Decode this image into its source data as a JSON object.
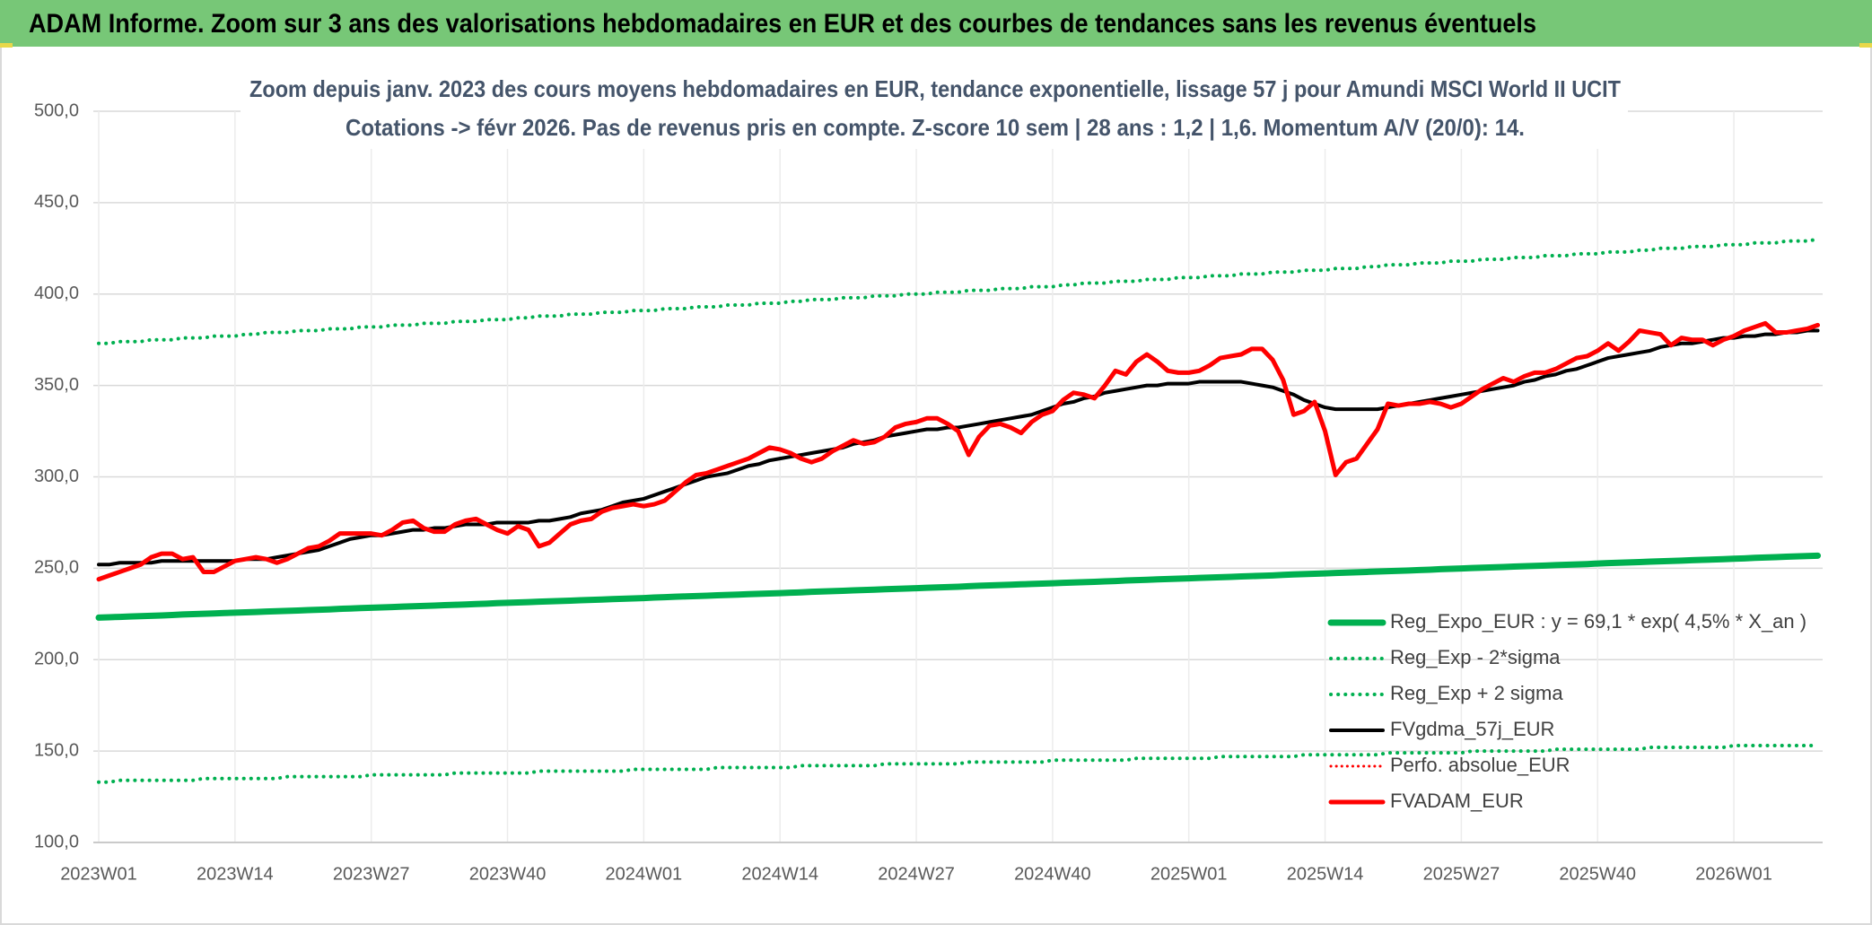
{
  "chart_data": {
    "type": "line",
    "title": "ADAM Informe. Zoom sur 3 ans des valorisations hebdomadaires en EUR et des courbes de tendances sans les revenus éventuels",
    "subtitle": [
      "Zoom depuis janv. 2023 des cours moyens hebdomadaires en EUR, tendance exponentielle, lissage 57 j pour Amundi MSCI World II UCIT",
      "Cotations -> févr 2026. Pas de revenus pris en compte. Z-score 10 sem | 28 ans : 1,2 | 1,6. Momentum A/V (20/0): 14."
    ],
    "categories": [
      "2023W01",
      null,
      null,
      null,
      null,
      null,
      null,
      null,
      null,
      null,
      null,
      null,
      null,
      "2023W14",
      null,
      null,
      null,
      null,
      null,
      null,
      null,
      null,
      null,
      null,
      null,
      null,
      "2023W27",
      null,
      null,
      null,
      null,
      null,
      null,
      null,
      null,
      null,
      null,
      null,
      null,
      "2023W40",
      null,
      null,
      null,
      null,
      null,
      null,
      null,
      null,
      null,
      null,
      null,
      null,
      "2024W01",
      null,
      null,
      null,
      null,
      null,
      null,
      null,
      null,
      null,
      null,
      null,
      null,
      "2024W14",
      null,
      null,
      null,
      null,
      null,
      null,
      null,
      null,
      null,
      null,
      null,
      null,
      "2024W27",
      null,
      null,
      null,
      null,
      null,
      null,
      null,
      null,
      null,
      null,
      null,
      null,
      "2024W40",
      null,
      null,
      null,
      null,
      null,
      null,
      null,
      null,
      null,
      null,
      null,
      null,
      "2025W01",
      null,
      null,
      null,
      null,
      null,
      null,
      null,
      null,
      null,
      null,
      null,
      null,
      "2025W14",
      null,
      null,
      null,
      null,
      null,
      null,
      null,
      null,
      null,
      null,
      null,
      null,
      "2025W27",
      null,
      null,
      null,
      null,
      null,
      null,
      null,
      null,
      null,
      null,
      null,
      null,
      "2025W40",
      null,
      null,
      null,
      null,
      null,
      null,
      null,
      null,
      null,
      null,
      null,
      null,
      "2026W01",
      null,
      null,
      null,
      null,
      null,
      null,
      null,
      null
    ],
    "ylim": [
      100,
      500
    ],
    "yticks": [
      {
        "value": 100,
        "label": "100,0"
      },
      {
        "value": 150,
        "label": "150,0"
      },
      {
        "value": 200,
        "label": "200,0"
      },
      {
        "value": 250,
        "label": "250,0"
      },
      {
        "value": 300,
        "label": "300,0"
      },
      {
        "value": 350,
        "label": "350,0"
      },
      {
        "value": 400,
        "label": "400,0"
      },
      {
        "value": 450,
        "label": "450,0"
      },
      {
        "value": 500,
        "label": "500,0"
      }
    ],
    "grid": true,
    "legend": "lower right",
    "series": [
      {
        "name": "Reg_Expo_EUR : y = 69,1 * exp( 4,5% *  X_an )",
        "color": "#00b050",
        "style": "solid",
        "width": 7,
        "values": [
          223.0,
          223.2,
          223.4,
          223.6,
          223.8,
          224.0,
          224.2,
          224.4,
          224.7,
          224.9,
          225.1,
          225.3,
          225.5,
          225.7,
          225.9,
          226.1,
          226.3,
          226.5,
          226.7,
          226.9,
          227.1,
          227.3,
          227.5,
          227.8,
          228.0,
          228.2,
          228.4,
          228.6,
          228.8,
          229.0,
          229.2,
          229.4,
          229.6,
          229.8,
          230.0,
          230.2,
          230.4,
          230.6,
          230.9,
          231.1,
          231.3,
          231.5,
          231.7,
          231.9,
          232.1,
          232.3,
          232.5,
          232.7,
          232.9,
          233.1,
          233.3,
          233.5,
          233.7,
          234.0,
          234.2,
          234.4,
          234.6,
          234.8,
          235.0,
          235.2,
          235.4,
          235.6,
          235.8,
          236.0,
          236.2,
          236.4,
          236.6,
          236.8,
          237.1,
          237.3,
          237.5,
          237.7,
          237.9,
          238.1,
          238.3,
          238.5,
          238.7,
          238.9,
          239.1,
          239.3,
          239.5,
          239.7,
          239.9,
          240.2,
          240.4,
          240.6,
          240.8,
          241.0,
          241.2,
          241.4,
          241.6,
          241.8,
          242.0,
          242.2,
          242.4,
          242.6,
          242.8,
          243.0,
          243.3,
          243.5,
          243.7,
          243.9,
          244.1,
          244.3,
          244.5,
          244.7,
          244.9,
          245.1,
          245.3,
          245.5,
          245.7,
          245.9,
          246.1,
          246.4,
          246.6,
          246.8,
          247.0,
          247.2,
          247.4,
          247.6,
          247.8,
          248.0,
          248.2,
          248.4,
          248.6,
          248.8,
          249.0,
          249.2,
          249.5,
          249.7,
          249.9,
          250.1,
          250.3,
          250.5,
          250.7,
          250.9,
          251.1,
          251.3,
          251.5,
          251.7,
          251.9,
          252.1,
          252.3,
          252.6,
          252.8,
          253.0,
          253.2,
          253.4,
          253.6,
          253.8,
          254.0,
          254.2,
          254.4,
          254.6,
          254.8,
          255.0,
          255.2,
          255.4,
          255.7,
          255.9,
          256.1,
          256.3,
          256.5,
          256.7,
          256.9
        ]
      },
      {
        "name": "Reg_Exp - 2*sigma",
        "color": "#00b050",
        "style": "dotted",
        "width": 4,
        "values": [
          133,
          133,
          134,
          134,
          134,
          134,
          134,
          134,
          134,
          134,
          135,
          135,
          135,
          135,
          135,
          135,
          135,
          135,
          136,
          136,
          136,
          136,
          136,
          136,
          136,
          136,
          137,
          137,
          137,
          137,
          137,
          137,
          137,
          137,
          138,
          138,
          138,
          138,
          138,
          138,
          138,
          138,
          139,
          139,
          139,
          139,
          139,
          139,
          139,
          139,
          139,
          140,
          140,
          140,
          140,
          140,
          140,
          140,
          140,
          141,
          141,
          141,
          141,
          141,
          141,
          141,
          141,
          142,
          142,
          142,
          142,
          142,
          142,
          142,
          142,
          143,
          143,
          143,
          143,
          143,
          143,
          143,
          143,
          144,
          144,
          144,
          144,
          144,
          144,
          144,
          144,
          145,
          145,
          145,
          145,
          145,
          145,
          145,
          145,
          146,
          146,
          146,
          146,
          146,
          146,
          146,
          146,
          147,
          147,
          147,
          147,
          147,
          147,
          147,
          147,
          148,
          148,
          148,
          148,
          148,
          148,
          148,
          148,
          149,
          149,
          149,
          149,
          149,
          149,
          149,
          149,
          150,
          150,
          150,
          150,
          150,
          150,
          150,
          150,
          151,
          151,
          151,
          151,
          151,
          151,
          151,
          151,
          151,
          152,
          152,
          152,
          152,
          152,
          152,
          152,
          152,
          153,
          153,
          153,
          153,
          153,
          153,
          153,
          153,
          153
        ]
      },
      {
        "name": "Reg_Exp + 2 sigma",
        "color": "#00b050",
        "style": "dotted",
        "width": 4,
        "values": [
          373,
          373,
          374,
          374,
          374,
          375,
          375,
          375,
          376,
          376,
          376,
          377,
          377,
          377,
          378,
          378,
          379,
          379,
          379,
          380,
          380,
          380,
          381,
          381,
          381,
          382,
          382,
          382,
          383,
          383,
          383,
          384,
          384,
          384,
          385,
          385,
          385,
          386,
          386,
          386,
          387,
          387,
          388,
          388,
          388,
          389,
          389,
          389,
          390,
          390,
          390,
          391,
          391,
          391,
          392,
          392,
          392,
          393,
          393,
          393,
          394,
          394,
          394,
          395,
          395,
          395,
          396,
          396,
          397,
          397,
          397,
          398,
          398,
          398,
          399,
          399,
          399,
          400,
          400,
          400,
          401,
          401,
          401,
          402,
          402,
          402,
          403,
          403,
          403,
          404,
          404,
          404,
          405,
          405,
          406,
          406,
          406,
          407,
          407,
          407,
          408,
          408,
          408,
          409,
          409,
          409,
          410,
          410,
          410,
          411,
          411,
          411,
          412,
          412,
          412,
          413,
          413,
          413,
          414,
          414,
          414,
          415,
          415,
          416,
          416,
          416,
          417,
          417,
          417,
          418,
          418,
          418,
          419,
          419,
          419,
          420,
          420,
          420,
          421,
          421,
          421,
          422,
          422,
          422,
          423,
          423,
          423,
          424,
          424,
          425,
          425,
          425,
          426,
          426,
          426,
          427,
          427,
          427,
          428,
          428,
          428,
          429,
          429,
          429,
          430
        ]
      },
      {
        "name": "FVgdma_57j_EUR",
        "color": "#000000",
        "style": "solid",
        "width": 4,
        "values": [
          252,
          252,
          253,
          253,
          253,
          253,
          254,
          254,
          254,
          254,
          254,
          254,
          254,
          254,
          255,
          255,
          255,
          256,
          257,
          258,
          259,
          260,
          262,
          264,
          266,
          267,
          268,
          268,
          269,
          270,
          271,
          271,
          272,
          272,
          273,
          274,
          274,
          274,
          275,
          275,
          275,
          275,
          276,
          276,
          277,
          278,
          280,
          281,
          282,
          284,
          286,
          287,
          288,
          290,
          292,
          294,
          296,
          298,
          300,
          301,
          302,
          304,
          306,
          307,
          309,
          310,
          311,
          312,
          313,
          314,
          315,
          316,
          318,
          319,
          320,
          322,
          323,
          324,
          325,
          326,
          326,
          327,
          327,
          328,
          329,
          330,
          331,
          332,
          333,
          334,
          336,
          338,
          340,
          341,
          343,
          344,
          346,
          347,
          348,
          349,
          350,
          350,
          351,
          351,
          351,
          352,
          352,
          352,
          352,
          352,
          351,
          350,
          349,
          347,
          345,
          342,
          340,
          338,
          337,
          337,
          337,
          337,
          337,
          338,
          339,
          340,
          341,
          342,
          343,
          344,
          345,
          346,
          347,
          348,
          349,
          350,
          352,
          353,
          355,
          356,
          358,
          359,
          361,
          363,
          365,
          366,
          367,
          368,
          369,
          371,
          372,
          373,
          373,
          374,
          375,
          376,
          376,
          377,
          377,
          378,
          378,
          379,
          379,
          380,
          380
        ]
      },
      {
        "name": "Perfo. absolue_EUR",
        "color": "#ff0000",
        "style": "dotted",
        "width": 3
      },
      {
        "name": "FVADAM_EUR",
        "color": "#ff0000",
        "style": "solid",
        "width": 5,
        "values": [
          244,
          246,
          248,
          250,
          252,
          256,
          258,
          258,
          255,
          256,
          248,
          248,
          251,
          254,
          255,
          256,
          255,
          253,
          255,
          258,
          261,
          262,
          265,
          269,
          269,
          269,
          269,
          268,
          271,
          275,
          276,
          272,
          270,
          270,
          274,
          276,
          277,
          274,
          271,
          269,
          273,
          271,
          262,
          264,
          269,
          274,
          276,
          277,
          281,
          283,
          284,
          285,
          284,
          285,
          287,
          292,
          297,
          301,
          302,
          304,
          306,
          308,
          310,
          313,
          316,
          315,
          313,
          310,
          308,
          310,
          314,
          317,
          320,
          318,
          319,
          322,
          327,
          329,
          330,
          332,
          332,
          329,
          325,
          312,
          322,
          328,
          329,
          327,
          324,
          330,
          334,
          336,
          342,
          346,
          345,
          343,
          350,
          358,
          356,
          363,
          367,
          363,
          358,
          357,
          357,
          358,
          361,
          365,
          366,
          367,
          370,
          370,
          364,
          353,
          334,
          336,
          341,
          325,
          301,
          308,
          310,
          318,
          326,
          340,
          339,
          340,
          340,
          341,
          340,
          338,
          340,
          344,
          348,
          351,
          354,
          352,
          355,
          357,
          357,
          359,
          362,
          365,
          366,
          369,
          373,
          369,
          374,
          380,
          379,
          378,
          372,
          376,
          375,
          375,
          372,
          375,
          377,
          380,
          382,
          384,
          379,
          379,
          380,
          381,
          383
        ]
      }
    ]
  }
}
